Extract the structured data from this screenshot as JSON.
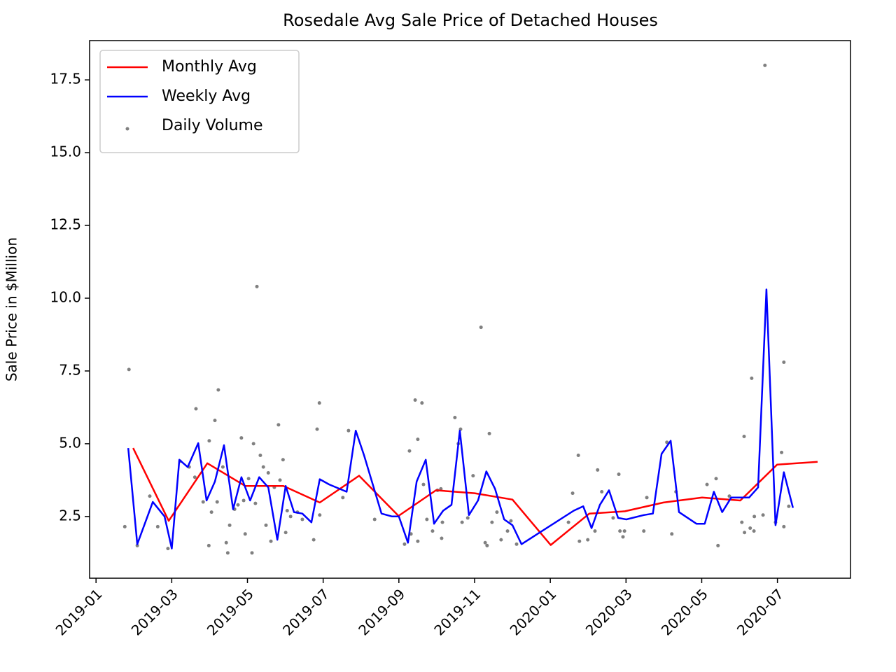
{
  "chart_data": {
    "type": "line",
    "title": "Rosedale Avg Sale Price of Detached Houses",
    "y_label": "Sale Price in $Million",
    "xlim": [
      -0.17,
      19.93
    ],
    "ylim": [
      0.38,
      18.85
    ],
    "xticks": [
      {
        "value": 0,
        "label": "2019-01"
      },
      {
        "value": 2,
        "label": "2019-03"
      },
      {
        "value": 4,
        "label": "2019-05"
      },
      {
        "value": 6,
        "label": "2019-07"
      },
      {
        "value": 8,
        "label": "2019-09"
      },
      {
        "value": 10,
        "label": "2019-11"
      },
      {
        "value": 12,
        "label": "2020-01"
      },
      {
        "value": 14,
        "label": "2020-03"
      },
      {
        "value": 16,
        "label": "2020-05"
      },
      {
        "value": 18,
        "label": "2020-07"
      }
    ],
    "yticks": [
      2.5,
      {
        "value": 5,
        "label": "5.0"
      },
      7.5,
      {
        "value": 10,
        "label": "10.0"
      },
      12.5,
      {
        "value": 15,
        "label": "15.0"
      },
      17.5
    ],
    "legend": "upper left",
    "series": [
      {
        "name": "Monthly Avg",
        "type": "line",
        "color": "#ff0000",
        "x": [
          0.98,
          1.92,
          2.94,
          3.94,
          4.95,
          5.91,
          6.95,
          7.99,
          8.98,
          10.0,
          11.0,
          12.01,
          13.03,
          13.97,
          14.99,
          16.01,
          17.02,
          17.99,
          19.06
        ],
        "values": [
          4.85,
          2.35,
          4.33,
          3.55,
          3.55,
          2.98,
          3.9,
          2.52,
          3.4,
          3.3,
          3.08,
          1.52,
          2.6,
          2.68,
          2.98,
          3.15,
          3.05,
          4.28,
          4.38
        ]
      },
      {
        "name": "Weekly Avg",
        "type": "line",
        "color": "#0000ff",
        "x": [
          0.85,
          1.09,
          1.5,
          1.81,
          2.0,
          2.2,
          2.42,
          2.7,
          2.92,
          3.14,
          3.38,
          3.62,
          3.84,
          4.07,
          4.31,
          4.55,
          4.79,
          5.01,
          5.23,
          5.45,
          5.69,
          5.91,
          6.16,
          6.62,
          6.86,
          7.08,
          7.54,
          7.82,
          8.0,
          8.24,
          8.47,
          8.71,
          8.93,
          9.17,
          9.39,
          9.61,
          9.85,
          10.09,
          10.31,
          10.54,
          10.78,
          11.0,
          11.24,
          12.62,
          12.87,
          13.09,
          13.31,
          13.55,
          13.79,
          14.01,
          14.47,
          14.71,
          14.94,
          15.18,
          15.4,
          15.86,
          16.08,
          16.32,
          16.54,
          16.78,
          17.25,
          17.49,
          17.71,
          17.95,
          18.17,
          18.41
        ],
        "values": [
          4.85,
          1.55,
          3.0,
          2.5,
          1.4,
          4.45,
          4.2,
          5.02,
          3.05,
          3.7,
          4.95,
          2.75,
          3.85,
          3.05,
          3.85,
          3.5,
          1.7,
          3.55,
          2.65,
          2.6,
          2.3,
          3.78,
          3.6,
          3.35,
          5.45,
          4.6,
          2.6,
          2.5,
          2.5,
          1.6,
          3.7,
          4.45,
          2.25,
          2.7,
          2.9,
          5.45,
          2.55,
          3.05,
          4.05,
          3.45,
          2.4,
          2.2,
          1.55,
          2.7,
          2.85,
          2.1,
          2.9,
          3.4,
          2.45,
          2.4,
          2.55,
          2.6,
          4.65,
          5.1,
          2.65,
          2.25,
          2.25,
          3.35,
          2.65,
          3.15,
          3.15,
          3.5,
          10.3,
          2.2,
          4.02,
          2.8
        ]
      },
      {
        "name": "Daily Volume",
        "type": "scatter",
        "color": "#808080",
        "x": [
          0.76,
          0.87,
          1.09,
          1.42,
          1.63,
          1.9,
          2.22,
          2.46,
          2.61,
          2.64,
          2.83,
          2.98,
          2.99,
          3.05,
          3.14,
          3.23,
          3.2,
          3.35,
          3.44,
          3.48,
          3.53,
          3.66,
          3.75,
          3.84,
          3.9,
          3.94,
          4.03,
          4.12,
          4.16,
          4.25,
          4.21,
          4.34,
          4.42,
          4.49,
          4.55,
          4.62,
          4.71,
          4.82,
          4.86,
          4.94,
          5.01,
          5.05,
          5.14,
          5.32,
          5.45,
          5.75,
          5.84,
          5.9,
          5.91,
          6.52,
          6.67,
          7.36,
          8.15,
          8.28,
          8.32,
          8.43,
          8.5,
          8.5,
          8.61,
          8.65,
          8.74,
          8.89,
          9.02,
          9.11,
          9.13,
          9.15,
          9.48,
          9.57,
          9.63,
          9.67,
          9.82,
          9.96,
          10.17,
          10.28,
          10.33,
          10.39,
          10.46,
          10.59,
          10.7,
          10.87,
          10.96,
          11.11,
          12.48,
          12.59,
          12.74,
          12.77,
          12.99,
          13.18,
          13.25,
          13.36,
          13.66,
          13.81,
          13.84,
          13.92,
          13.96,
          14.55,
          14.47,
          15.08,
          15.21,
          15.32,
          16.14,
          16.38,
          16.43,
          16.73,
          17.06,
          17.12,
          17.13,
          17.28,
          17.32,
          17.38,
          17.39,
          17.67,
          17.62,
          17.95,
          18.11,
          18.17,
          18.17,
          18.3
        ],
        "values": [
          2.15,
          7.55,
          1.5,
          3.2,
          2.15,
          1.4,
          4.4,
          4.2,
          3.85,
          6.2,
          3.0,
          1.5,
          5.1,
          2.65,
          5.8,
          6.85,
          3.0,
          4.2,
          1.6,
          1.25,
          2.2,
          2.75,
          2.9,
          5.2,
          3.05,
          1.9,
          3.8,
          1.25,
          5.0,
          10.4,
          2.95,
          4.6,
          4.2,
          2.2,
          4.0,
          1.65,
          3.5,
          5.65,
          3.75,
          4.45,
          1.95,
          2.7,
          2.5,
          2.65,
          2.4,
          1.7,
          5.5,
          6.4,
          2.55,
          3.15,
          5.45,
          2.4,
          1.55,
          4.75,
          1.9,
          6.5,
          5.15,
          1.65,
          6.4,
          3.6,
          2.4,
          2.0,
          3.4,
          3.45,
          1.75,
          2.3,
          5.9,
          5.0,
          5.5,
          2.3,
          2.45,
          3.9,
          9.0,
          1.6,
          1.5,
          5.35,
          2.3,
          2.65,
          1.7,
          2.0,
          2.35,
          1.55,
          2.3,
          3.3,
          4.6,
          1.65,
          1.7,
          2.0,
          4.1,
          3.35,
          2.45,
          3.95,
          2.0,
          1.8,
          2.0,
          3.15,
          2.0,
          5.05,
          1.9,
          3.35,
          3.6,
          3.8,
          1.5,
          3.2,
          2.3,
          5.25,
          1.95,
          2.1,
          7.25,
          2.0,
          2.5,
          18.0,
          2.55,
          2.3,
          4.7,
          7.8,
          2.15,
          2.85
        ]
      }
    ]
  }
}
